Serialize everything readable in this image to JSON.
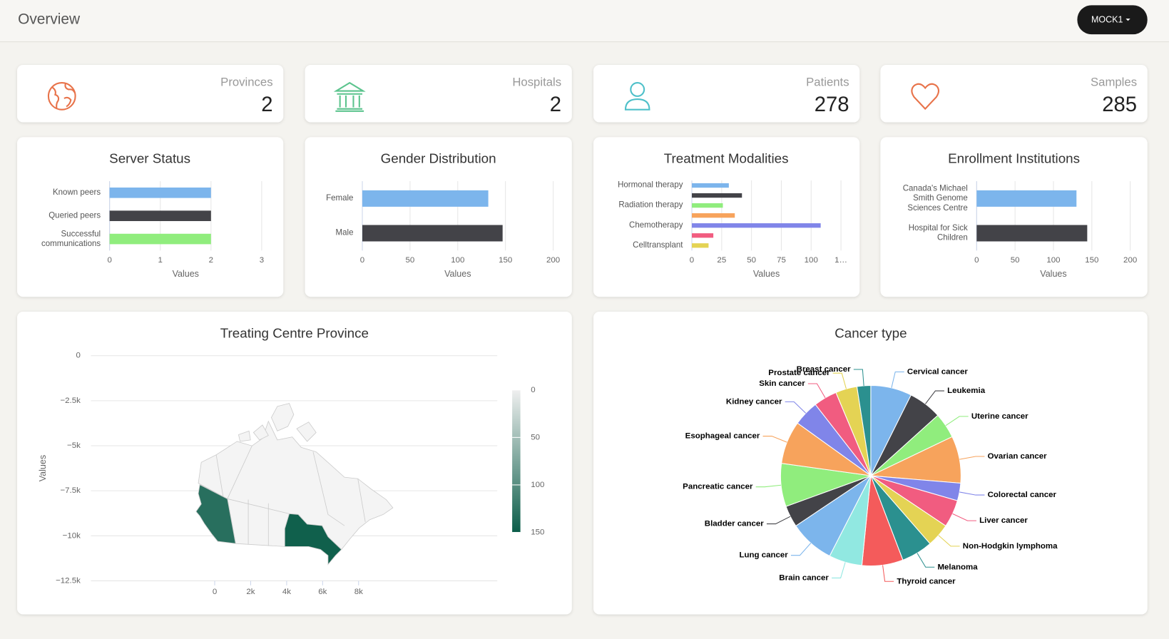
{
  "header": {
    "title": "Overview",
    "menu": "MOCK1"
  },
  "stats": [
    {
      "label": "Provinces",
      "value": 2
    },
    {
      "label": "Hospitals",
      "value": 2
    },
    {
      "label": "Patients",
      "value": 278
    },
    {
      "label": "Samples",
      "value": 285
    }
  ],
  "chart_data": [
    {
      "type": "bar",
      "title": "Server Status",
      "categories": [
        "Known peers",
        "Queried peers",
        "Successful communications"
      ],
      "values": [
        2,
        2,
        2
      ],
      "colors": [
        "#7cb5ec",
        "#434348",
        "#90ed7d"
      ],
      "xlim": [
        0,
        3
      ],
      "xticks": [
        0,
        1,
        2,
        3
      ],
      "x_label": "Values",
      "grid": true
    },
    {
      "type": "bar",
      "title": "Gender Distribution",
      "categories": [
        "Female",
        "Male"
      ],
      "values": [
        132,
        147
      ],
      "colors": [
        "#7cb5ec",
        "#434348"
      ],
      "xlim": [
        0,
        200
      ],
      "xticks": [
        0,
        50,
        100,
        150,
        200
      ],
      "x_label": "Values",
      "grid": true
    },
    {
      "type": "bar",
      "title": "Treatment Modalities",
      "categories": [
        "Hormonal therapy",
        null,
        "Radiation therapy",
        null,
        "Chemotherapy",
        null,
        "Celltransplant"
      ],
      "values": [
        31,
        42,
        26,
        36,
        108,
        18,
        14
      ],
      "colors": [
        "#7cb5ec",
        "#434348",
        "#90ed7d",
        "#f7a35c",
        "#8085e9",
        "#f15c80",
        "#e4d354"
      ],
      "xlim": [
        0,
        125
      ],
      "xticks": [
        0,
        25,
        50,
        75,
        100,
        {
          "value": 125,
          "label": "1…"
        }
      ],
      "x_label": "Values",
      "grid": true
    },
    {
      "type": "bar",
      "title": "Enrollment Institutions",
      "categories": [
        "Canada's Michael Smith Genome Sciences Centre",
        "Hospital for Sick Children"
      ],
      "values": [
        130,
        144
      ],
      "colors": [
        "#7cb5ec",
        "#434348"
      ],
      "xlim": [
        0,
        200
      ],
      "xticks": [
        0,
        50,
        100,
        150,
        200
      ],
      "x_label": "Values",
      "grid": true
    },
    {
      "type": "map",
      "title": "Treating Centre Province",
      "values": [
        131,
        147
      ],
      "y_label": "Values",
      "xlim": [
        -6880,
        15710
      ],
      "xticks": [
        0,
        {
          "value": 2000,
          "label": "2k"
        },
        {
          "value": 4000,
          "label": "4k"
        },
        {
          "value": 6000,
          "label": "6k"
        },
        {
          "value": 8000,
          "label": "8k"
        }
      ],
      "ylim": [
        -12500,
        0
      ],
      "yticks": [
        0,
        {
          "value": -2500,
          "label": "−2.5k"
        },
        {
          "value": -5000,
          "label": "−5k"
        },
        {
          "value": -7500,
          "label": "−7.5k"
        },
        {
          "value": -10000,
          "label": "−10k"
        },
        {
          "value": -12500,
          "label": "−12.5k"
        }
      ],
      "grid": true,
      "color_axis": {
        "lim": [
          0,
          150
        ],
        "ticks": [
          0,
          50,
          100,
          150
        ],
        "colors": [
          "#efefef",
          "#0b5d49"
        ]
      }
    },
    {
      "type": "pie",
      "title": "Cancer type",
      "categories": [
        "Cervical cancer",
        "Leukemia",
        "Uterine cancer",
        "Ovarian cancer",
        "Colorectal cancer",
        "Liver cancer",
        "Non-Hodgkin lymphoma",
        "Melanoma",
        "Thyroid cancer",
        "Brain cancer",
        "Lung cancer",
        "Bladder cancer",
        "Pancreatic cancer",
        "Esophageal cancer",
        "Kidney cancer",
        "Skin cancer",
        "Prostate cancer",
        "Breast cancer"
      ],
      "values": [
        21,
        17,
        13,
        24,
        9,
        14,
        12,
        16,
        21,
        17,
        23,
        11,
        22,
        22,
        13,
        12,
        11,
        7
      ],
      "colors": [
        "#7cb5ec",
        "#434348",
        "#90ed7d",
        "#f7a35c",
        "#8085e9",
        "#f15c80",
        "#e4d354",
        "#2b908f",
        "#f45b5b",
        "#91e8e1",
        "#7cb5ec",
        "#434348",
        "#90ed7d",
        "#f7a35c",
        "#8085e9",
        "#f15c80",
        "#e4d354",
        "#2b908f"
      ]
    }
  ]
}
